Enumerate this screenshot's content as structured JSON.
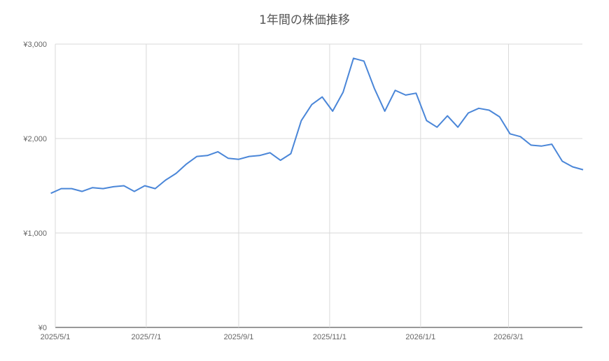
{
  "chart_data": {
    "type": "line",
    "title": "1年間の株価推移",
    "xlabel": "",
    "ylabel": "",
    "ylim": [
      0,
      3000
    ],
    "yticks": [
      0,
      1000,
      2000,
      3000
    ],
    "ytick_labels": [
      "¥0",
      "¥1,000",
      "¥2,000",
      "¥3,000"
    ],
    "xticks": [
      "2025-05-01",
      "2025-07-01",
      "2025-09-01",
      "2025-11-01",
      "2026-01-01",
      "2026-03-01"
    ],
    "xtick_labels": [
      "2025/5/1",
      "2025/7/1",
      "2025/9/1",
      "2025/11/1",
      "2026/1/1",
      "2026/3/1"
    ],
    "xlim": [
      "2025-04-28",
      "2026-04-20"
    ],
    "grid": true,
    "legend": "none",
    "color": "#4a86d8",
    "x": [
      "2025-04-28",
      "2025-05-05",
      "2025-05-12",
      "2025-05-19",
      "2025-05-26",
      "2025-06-02",
      "2025-06-09",
      "2025-06-16",
      "2025-06-23",
      "2025-06-30",
      "2025-07-07",
      "2025-07-14",
      "2025-07-21",
      "2025-07-28",
      "2025-08-04",
      "2025-08-11",
      "2025-08-18",
      "2025-08-25",
      "2025-09-01",
      "2025-09-08",
      "2025-09-15",
      "2025-09-22",
      "2025-09-29",
      "2025-10-06",
      "2025-10-13",
      "2025-10-20",
      "2025-10-27",
      "2025-11-03",
      "2025-11-10",
      "2025-11-17",
      "2025-11-24",
      "2025-12-01",
      "2025-12-08",
      "2025-12-15",
      "2025-12-22",
      "2025-12-29",
      "2026-01-05",
      "2026-01-12",
      "2026-01-19",
      "2026-01-26",
      "2026-02-02",
      "2026-02-09",
      "2026-02-16",
      "2026-02-23",
      "2026-03-02",
      "2026-03-09",
      "2026-03-16",
      "2026-03-23",
      "2026-03-30",
      "2026-04-06",
      "2026-04-13",
      "2026-04-20"
    ],
    "values": [
      1420,
      1470,
      1470,
      1440,
      1480,
      1470,
      1490,
      1500,
      1440,
      1500,
      1470,
      1560,
      1630,
      1730,
      1810,
      1820,
      1860,
      1790,
      1780,
      1810,
      1820,
      1850,
      1770,
      1840,
      2190,
      2360,
      2440,
      2290,
      2490,
      2850,
      2820,
      2530,
      2290,
      2510,
      2460,
      2480,
      2190,
      2120,
      2240,
      2120,
      2270,
      2320,
      2300,
      2230,
      2050,
      2020,
      1930,
      1920,
      1940,
      1760,
      1700,
      1670
    ]
  }
}
